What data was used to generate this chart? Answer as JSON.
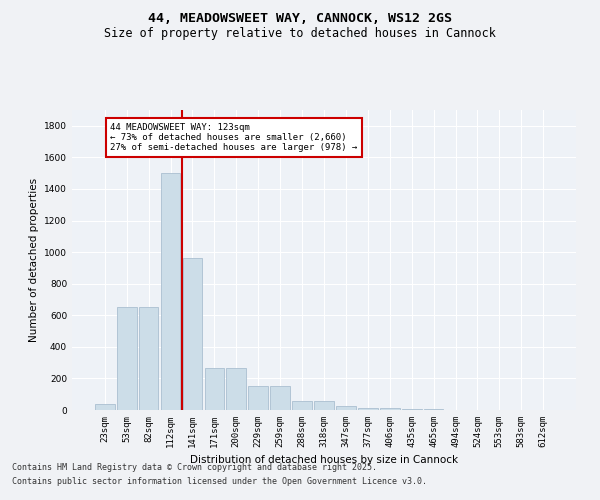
{
  "title_line1": "44, MEADOWSWEET WAY, CANNOCK, WS12 2GS",
  "title_line2": "Size of property relative to detached houses in Cannock",
  "xlabel": "Distribution of detached houses by size in Cannock",
  "ylabel": "Number of detached properties",
  "categories": [
    "23sqm",
    "53sqm",
    "82sqm",
    "112sqm",
    "141sqm",
    "171sqm",
    "200sqm",
    "229sqm",
    "259sqm",
    "288sqm",
    "318sqm",
    "347sqm",
    "377sqm",
    "406sqm",
    "435sqm",
    "465sqm",
    "494sqm",
    "524sqm",
    "553sqm",
    "583sqm",
    "612sqm"
  ],
  "values": [
    40,
    650,
    650,
    1500,
    960,
    265,
    265,
    155,
    155,
    60,
    60,
    25,
    15,
    10,
    5,
    5,
    3,
    3,
    2,
    2,
    2
  ],
  "bar_color": "#ccdde8",
  "bar_edge_color": "#aabfd0",
  "vline_color": "#cc0000",
  "vline_x_index": 3.5,
  "annotation_text": "44 MEADOWSWEET WAY: 123sqm\n← 73% of detached houses are smaller (2,660)\n27% of semi-detached houses are larger (978) →",
  "annotation_box_color": "#ffffff",
  "annotation_box_edge": "#cc0000",
  "ylim": [
    0,
    1900
  ],
  "yticks": [
    0,
    200,
    400,
    600,
    800,
    1000,
    1200,
    1400,
    1600,
    1800
  ],
  "bg_color": "#eef2f7",
  "grid_color": "#ffffff",
  "footer_line1": "Contains HM Land Registry data © Crown copyright and database right 2025.",
  "footer_line2": "Contains public sector information licensed under the Open Government Licence v3.0.",
  "title_fontsize": 9.5,
  "subtitle_fontsize": 8.5,
  "label_fontsize": 7.5,
  "tick_fontsize": 6.5,
  "annotation_fontsize": 6.5,
  "footer_fontsize": 6
}
